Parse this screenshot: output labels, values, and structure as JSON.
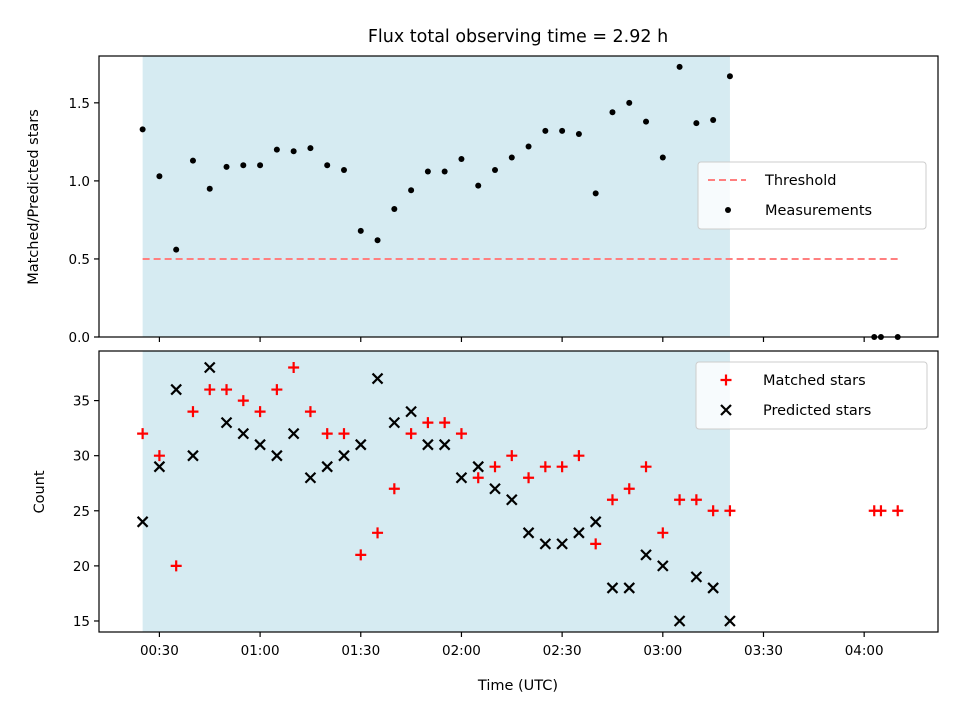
{
  "chart_data": {
    "type": "scatter",
    "title": "Flux total observing time = 2.92 h",
    "xlabel": "Time (UTC)",
    "x_ticks": [
      "00:30",
      "01:00",
      "01:30",
      "02:00",
      "02:30",
      "03:00",
      "03:30",
      "04:00"
    ],
    "x_range": [
      "00:12",
      "04:22"
    ],
    "observing_window": {
      "start": "00:25",
      "end": "03:20",
      "color": "#add8e6"
    },
    "panels": [
      {
        "ylabel": "Matched/Predicted stars",
        "ylim": [
          0,
          1.8
        ],
        "y_ticks": [
          "0.0",
          "0.5",
          "1.0",
          "1.5"
        ],
        "legend_position": "center-right",
        "legend": [
          "Threshold",
          "Measurements"
        ],
        "threshold": {
          "name": "Threshold",
          "value": 0.5,
          "color": "#ff7f7f",
          "style": "dashed",
          "x_start": "00:25",
          "x_end": "04:10"
        },
        "series": [
          {
            "name": "Measurements",
            "marker": "dot",
            "color": "#000000",
            "points": [
              [
                "00:25",
                1.33
              ],
              [
                "00:30",
                1.03
              ],
              [
                "00:35",
                0.56
              ],
              [
                "00:40",
                1.13
              ],
              [
                "00:45",
                0.95
              ],
              [
                "00:50",
                1.09
              ],
              [
                "00:55",
                1.1
              ],
              [
                "01:00",
                1.1
              ],
              [
                "01:05",
                1.2
              ],
              [
                "01:10",
                1.19
              ],
              [
                "01:15",
                1.21
              ],
              [
                "01:20",
                1.1
              ],
              [
                "01:25",
                1.07
              ],
              [
                "01:30",
                0.68
              ],
              [
                "01:35",
                0.62
              ],
              [
                "01:40",
                0.82
              ],
              [
                "01:45",
                0.94
              ],
              [
                "01:50",
                1.06
              ],
              [
                "01:55",
                1.06
              ],
              [
                "02:00",
                1.14
              ],
              [
                "02:05",
                0.97
              ],
              [
                "02:10",
                1.07
              ],
              [
                "02:15",
                1.15
              ],
              [
                "02:20",
                1.22
              ],
              [
                "02:25",
                1.32
              ],
              [
                "02:30",
                1.32
              ],
              [
                "02:35",
                1.3
              ],
              [
                "02:40",
                0.92
              ],
              [
                "02:45",
                1.44
              ],
              [
                "02:50",
                1.5
              ],
              [
                "02:55",
                1.38
              ],
              [
                "03:00",
                1.15
              ],
              [
                "03:05",
                1.73
              ],
              [
                "03:10",
                1.37
              ],
              [
                "03:15",
                1.39
              ],
              [
                "03:20",
                1.67
              ],
              [
                "04:03",
                0.0
              ],
              [
                "04:05",
                0.0
              ],
              [
                "04:10",
                0.0
              ]
            ]
          }
        ]
      },
      {
        "ylabel": "Count",
        "ylim": [
          14,
          39.5
        ],
        "y_ticks": [
          "15",
          "20",
          "25",
          "30",
          "35"
        ],
        "legend_position": "top-right",
        "legend": [
          "Matched stars",
          "Predicted stars"
        ],
        "series": [
          {
            "name": "Matched stars",
            "marker": "plus",
            "color": "#ff0000",
            "points": [
              [
                "00:25",
                32
              ],
              [
                "00:30",
                30
              ],
              [
                "00:35",
                20
              ],
              [
                "00:40",
                34
              ],
              [
                "00:45",
                36
              ],
              [
                "00:50",
                36
              ],
              [
                "00:55",
                35
              ],
              [
                "01:00",
                34
              ],
              [
                "01:05",
                36
              ],
              [
                "01:10",
                38
              ],
              [
                "01:15",
                34
              ],
              [
                "01:20",
                32
              ],
              [
                "01:25",
                32
              ],
              [
                "01:30",
                21
              ],
              [
                "01:35",
                23
              ],
              [
                "01:40",
                27
              ],
              [
                "01:45",
                32
              ],
              [
                "01:50",
                33
              ],
              [
                "01:55",
                33
              ],
              [
                "02:00",
                32
              ],
              [
                "02:05",
                28
              ],
              [
                "02:10",
                29
              ],
              [
                "02:15",
                30
              ],
              [
                "02:20",
                28
              ],
              [
                "02:25",
                29
              ],
              [
                "02:30",
                29
              ],
              [
                "02:35",
                30
              ],
              [
                "02:40",
                22
              ],
              [
                "02:45",
                26
              ],
              [
                "02:50",
                27
              ],
              [
                "02:55",
                29
              ],
              [
                "03:00",
                23
              ],
              [
                "03:05",
                26
              ],
              [
                "03:10",
                26
              ],
              [
                "03:15",
                25
              ],
              [
                "03:20",
                25
              ],
              [
                "04:03",
                25
              ],
              [
                "04:05",
                25
              ],
              [
                "04:10",
                25
              ]
            ]
          },
          {
            "name": "Predicted stars",
            "marker": "x",
            "color": "#000000",
            "points": [
              [
                "00:25",
                24
              ],
              [
                "00:30",
                29
              ],
              [
                "00:35",
                36
              ],
              [
                "00:40",
                30
              ],
              [
                "00:45",
                38
              ],
              [
                "00:50",
                33
              ],
              [
                "00:55",
                32
              ],
              [
                "01:00",
                31
              ],
              [
                "01:05",
                30
              ],
              [
                "01:10",
                32
              ],
              [
                "01:15",
                28
              ],
              [
                "01:20",
                29
              ],
              [
                "01:25",
                30
              ],
              [
                "01:30",
                31
              ],
              [
                "01:35",
                37
              ],
              [
                "01:40",
                33
              ],
              [
                "01:45",
                34
              ],
              [
                "01:50",
                31
              ],
              [
                "01:55",
                31
              ],
              [
                "02:00",
                28
              ],
              [
                "02:05",
                29
              ],
              [
                "02:10",
                27
              ],
              [
                "02:15",
                26
              ],
              [
                "02:20",
                23
              ],
              [
                "02:25",
                22
              ],
              [
                "02:30",
                22
              ],
              [
                "02:35",
                23
              ],
              [
                "02:40",
                24
              ],
              [
                "02:45",
                18
              ],
              [
                "02:50",
                18
              ],
              [
                "02:55",
                21
              ],
              [
                "03:00",
                20
              ],
              [
                "03:05",
                15
              ],
              [
                "03:10",
                19
              ],
              [
                "03:15",
                18
              ],
              [
                "03:20",
                15
              ]
            ]
          }
        ]
      }
    ]
  }
}
